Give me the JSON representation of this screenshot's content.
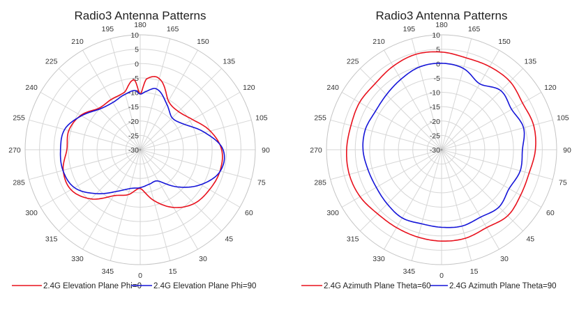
{
  "chart_data": [
    {
      "type": "polar",
      "title": "Radio3 Antenna Patterns",
      "rlim": [
        -30,
        10
      ],
      "r_ticks": [
        10,
        5,
        0,
        -5,
        -10,
        -15,
        -20,
        -25,
        -30
      ],
      "theta_ticks": [
        0,
        15,
        30,
        45,
        60,
        75,
        90,
        105,
        120,
        135,
        150,
        165,
        180,
        195,
        210,
        225,
        240,
        255,
        270,
        285,
        300,
        315,
        330,
        345
      ],
      "theta_zero": "bottom",
      "theta_direction": "counterclockwise",
      "grid": true,
      "legend_position": "bottom",
      "theta": [
        0,
        15,
        30,
        45,
        60,
        75,
        90,
        105,
        120,
        135,
        150,
        165,
        175,
        180,
        185,
        195,
        210,
        225,
        240,
        255,
        270,
        285,
        300,
        315,
        330,
        345
      ],
      "series": [
        {
          "name": "2.4G Elevation Plane Phi=0",
          "color": "#e8101c",
          "values": [
            -16.5,
            -11.7,
            -6.8,
            -3.5,
            -2.2,
            -1.3,
            -1.7,
            -4.8,
            -9,
            -11.2,
            -10.4,
            -4.4,
            -5.3,
            -10.6,
            -5.6,
            -9.2,
            -9.8,
            -9.6,
            -6.1,
            -4.3,
            -4.5,
            -2.3,
            -2.2,
            -5.8,
            -11.5,
            -13.8
          ]
        },
        {
          "name": "2.4G Elevation Plane Phi=90",
          "color": "#1414d8",
          "values": [
            -16.8,
            -17.6,
            -17.4,
            -11.7,
            -5.7,
            -1.2,
            -1.2,
            -6.8,
            -12.3,
            -14.3,
            -11.6,
            -8.1,
            -9.7,
            -10.6,
            -9.3,
            -10,
            -11,
            -10,
            -6.4,
            -2.8,
            -2.3,
            -2.2,
            -3.6,
            -8.4,
            -13.2,
            -16
          ]
        }
      ]
    },
    {
      "type": "polar",
      "title": "Radio3 Antenna Patterns",
      "rlim": [
        -30,
        10
      ],
      "r_ticks": [
        10,
        5,
        0,
        -5,
        -10,
        -15,
        -20,
        -25,
        -30
      ],
      "theta_ticks": [
        0,
        15,
        30,
        45,
        60,
        75,
        90,
        105,
        120,
        135,
        150,
        165,
        180,
        195,
        210,
        225,
        240,
        255,
        270,
        285,
        300,
        315,
        330,
        345
      ],
      "theta_zero": "bottom",
      "theta_direction": "counterclockwise",
      "grid": true,
      "legend_position": "bottom",
      "theta": [
        0,
        15,
        30,
        45,
        60,
        75,
        90,
        105,
        120,
        135,
        150,
        165,
        180,
        195,
        210,
        225,
        240,
        255,
        270,
        285,
        300,
        315,
        330,
        345
      ],
      "series": [
        {
          "name": "2.4G Azimuth Plane Theta=60",
          "color": "#e8101c",
          "values": [
            1.8,
            1.9,
            1.3,
            2.5,
            1.7,
            1.5,
            2.6,
            3.1,
            2.5,
            3.6,
            3.4,
            3.1,
            4,
            4.4,
            3.6,
            2.6,
            2.9,
            2.6,
            3,
            3.2,
            2.7,
            1.5,
            1.3,
            1.5
          ]
        },
        {
          "name": "2.4G Azimuth Plane Theta=90",
          "color": "#1414d8",
          "values": [
            -3,
            -2.5,
            -2.9,
            -1.8,
            -2.9,
            -1.7,
            -1.9,
            -0.5,
            -1.9,
            -0.9,
            -3.5,
            -0.7,
            0.1,
            -0.2,
            -1.7,
            -2.9,
            -3.4,
            -2.6,
            -2.7,
            -3.5,
            -3.8,
            -3.3,
            -2.6,
            -3.3
          ]
        }
      ]
    }
  ]
}
